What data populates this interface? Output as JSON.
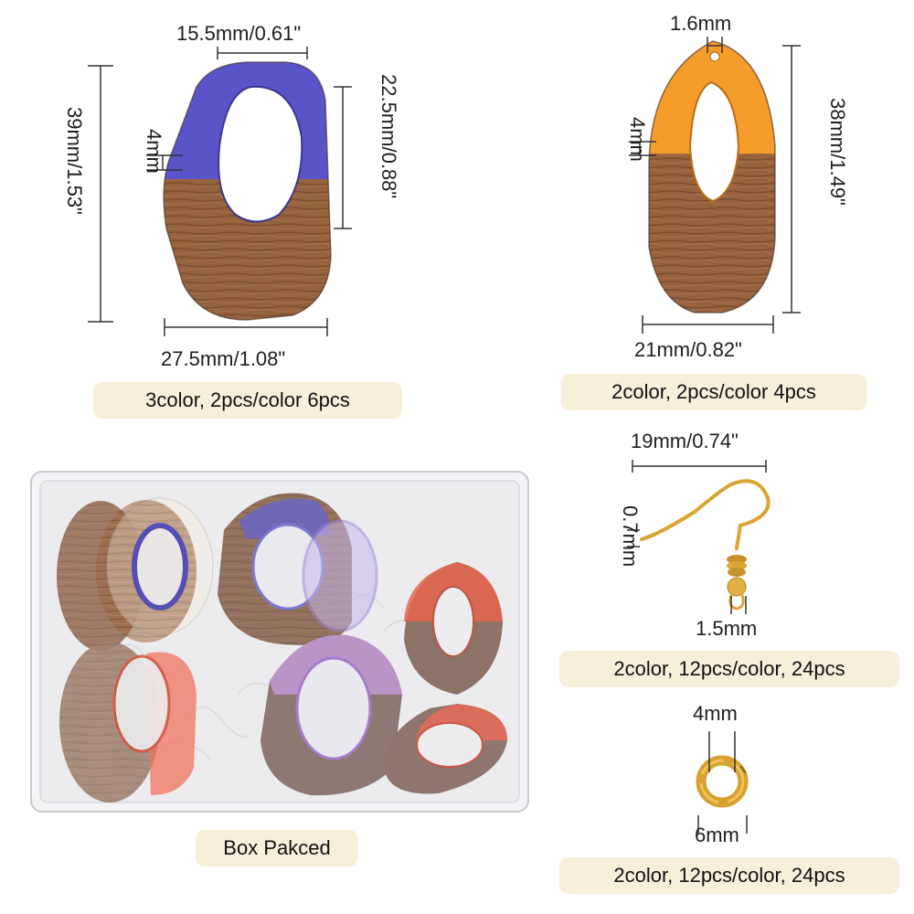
{
  "pendant_a": {
    "top_width": "15.5mm/0.61\"",
    "height": "39mm/1.53\"",
    "hole_height": "22.5mm/0.88\"",
    "thickness": "4mm",
    "bottom_width": "27.5mm/1.08\"",
    "caption": "3color, 2pcs/color 6pcs",
    "resin_color": "#5a54c9"
  },
  "pendant_b": {
    "hole": "1.6mm",
    "thickness": "4mm",
    "height": "38mm/1.49\"",
    "width": "21mm/0.82\"",
    "caption": "2color, 2pcs/color 4pcs",
    "resin_color": "#f59c2a"
  },
  "hook": {
    "width": "19mm/0.74\"",
    "wire": "0.7mm",
    "loop": "1.5mm",
    "caption": "2color, 12pcs/color, 24pcs",
    "color": "#d9a534"
  },
  "jump_ring": {
    "thickness": "4mm",
    "diameter": "6mm",
    "caption": "2color, 12pcs/color, 24pcs"
  },
  "box": {
    "caption": "Box Pakced"
  },
  "colors": {
    "wood": "#8a5a3a",
    "badge_bg": "#f8efdb",
    "dimension_line": "#333333"
  }
}
